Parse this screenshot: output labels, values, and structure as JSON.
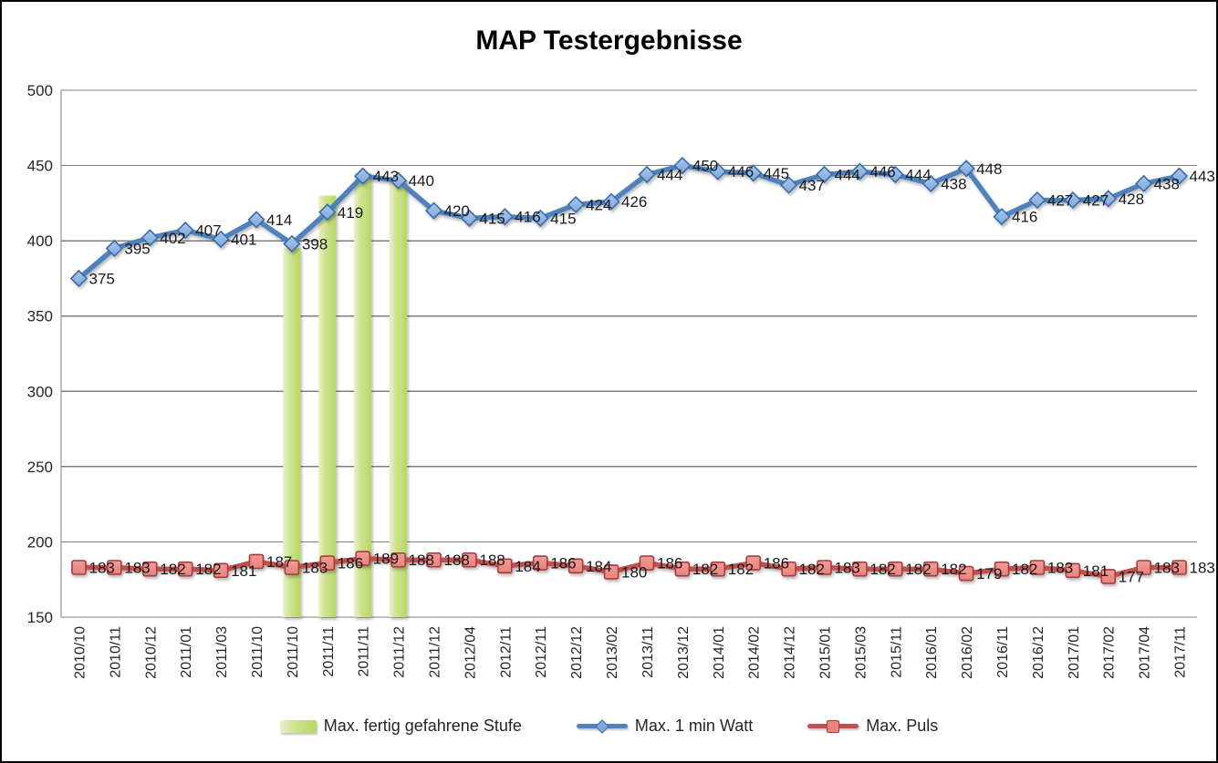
{
  "chart_data": {
    "type": "combo",
    "title": "MAP Testergebnisse",
    "categories": [
      "2010/10",
      "2010/11",
      "2010/12",
      "2011/01",
      "2011/03",
      "2011/10",
      "2011/10",
      "2011/11",
      "2011/11",
      "2011/12",
      "2011/12",
      "2012/04",
      "2012/11",
      "2012/11",
      "2012/12",
      "2013/02",
      "2013/11",
      "2013/12",
      "2014/01",
      "2014/02",
      "2014/12",
      "2015/01",
      "2015/03",
      "2015/11",
      "2016/01",
      "2016/02",
      "2016/11",
      "2016/12",
      "2017/01",
      "2017/02",
      "2017/04",
      "2017/11"
    ],
    "series": [
      {
        "name": "Max. fertig gefahrene Stufe",
        "type": "bar",
        "gradient": [
          "#E7F2C6",
          "#CDE28D",
          "#B7D765"
        ],
        "values": [
          null,
          null,
          null,
          null,
          null,
          null,
          395,
          430,
          445,
          440,
          null,
          null,
          null,
          null,
          null,
          null,
          null,
          null,
          null,
          null,
          null,
          null,
          null,
          null,
          null,
          null,
          null,
          null,
          null,
          null,
          null,
          null
        ],
        "data_labels": false
      },
      {
        "name": "Max. 1 min Watt",
        "type": "line",
        "marker": "diamond",
        "line_color": "#4F81BD",
        "marker_fill": "#7FA8DC",
        "marker_fill_top": "#A9C7EA",
        "marker_stroke": "#3B6CA8",
        "values": [
          375,
          395,
          402,
          407,
          401,
          414,
          398,
          419,
          443,
          440,
          420,
          415,
          416,
          415,
          424,
          426,
          444,
          450,
          446,
          445,
          437,
          444,
          446,
          444,
          438,
          448,
          416,
          427,
          427,
          428,
          438,
          443
        ],
        "data_labels": true
      },
      {
        "name": "Max. Puls",
        "type": "line",
        "marker": "square",
        "line_color": "#C0504D",
        "marker_fill": "#E8837E",
        "marker_fill_top": "#F09B96",
        "marker_stroke": "#A63E3C",
        "values": [
          183,
          183,
          182,
          182,
          181,
          187,
          183,
          186,
          189,
          188,
          188,
          188,
          184,
          186,
          184,
          180,
          186,
          182,
          182,
          186,
          182,
          183,
          182,
          182,
          182,
          179,
          182,
          183,
          181,
          177,
          183,
          183
        ],
        "data_labels": true
      }
    ],
    "y_axis": {
      "min": 150,
      "max": 500,
      "step": 50,
      "ticks": [
        150,
        200,
        250,
        300,
        350,
        400,
        450,
        500
      ]
    },
    "x_labels_rotated": true,
    "grid": true,
    "gridline_color": "#7F7F7F",
    "legend_position": "bottom",
    "background": "#FFFFFF",
    "border_color": "#000000",
    "label_color": "#1A1A1A"
  }
}
